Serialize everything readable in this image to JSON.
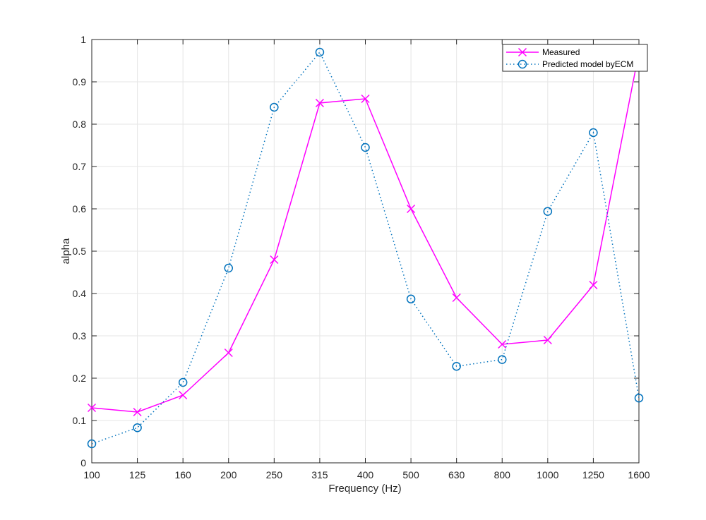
{
  "chart_data": {
    "type": "line",
    "title": "",
    "xlabel": "Frequency (Hz)",
    "ylabel": "alpha",
    "categories": [
      "100",
      "125",
      "160",
      "200",
      "250",
      "315",
      "400",
      "500",
      "630",
      "800",
      "1000",
      "1250",
      "1600"
    ],
    "ylim": [
      0,
      1
    ],
    "yticks": [
      "0",
      "0.1",
      "0.2",
      "0.3",
      "0.4",
      "0.5",
      "0.6",
      "0.7",
      "0.8",
      "0.9",
      "1"
    ],
    "grid": true,
    "legend_position": "top-right",
    "series": [
      {
        "name": "Measured",
        "color": "#ff00ff",
        "line_style": "solid",
        "marker": "x",
        "values": [
          0.13,
          0.12,
          0.16,
          0.26,
          0.48,
          0.85,
          0.86,
          0.6,
          0.39,
          0.28,
          0.29,
          0.42,
          0.97
        ]
      },
      {
        "name": "Predicted model byECM",
        "color": "#0072bd",
        "line_style": "dotted",
        "marker": "circle",
        "values": [
          0.045,
          0.083,
          0.19,
          0.46,
          0.84,
          0.97,
          0.745,
          0.387,
          0.228,
          0.244,
          0.594,
          0.78,
          0.153
        ]
      }
    ]
  }
}
